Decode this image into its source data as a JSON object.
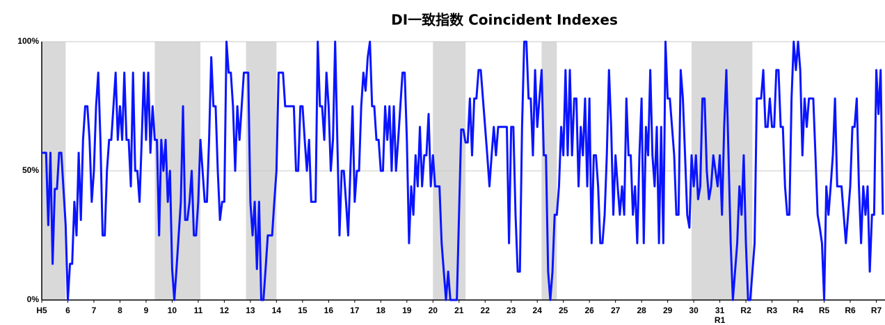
{
  "chart_data": {
    "type": "line",
    "title": "DI一致指数 Coincident Indexes",
    "categories": [
      "H5",
      null,
      null,
      null,
      null,
      null,
      null,
      null,
      null,
      null,
      null,
      null,
      "6",
      null,
      null,
      null,
      null,
      null,
      null,
      null,
      null,
      null,
      null,
      null,
      "7",
      null,
      null,
      null,
      null,
      null,
      null,
      null,
      null,
      null,
      null,
      null,
      "8",
      null,
      null,
      null,
      null,
      null,
      null,
      null,
      null,
      null,
      null,
      null,
      "9",
      null,
      null,
      null,
      null,
      null,
      null,
      null,
      null,
      null,
      null,
      null,
      "10",
      null,
      null,
      null,
      null,
      null,
      null,
      null,
      null,
      null,
      null,
      null,
      "11",
      null,
      null,
      null,
      null,
      null,
      null,
      null,
      null,
      null,
      null,
      null,
      "12",
      null,
      null,
      null,
      null,
      null,
      null,
      null,
      null,
      null,
      null,
      null,
      "13",
      null,
      null,
      null,
      null,
      null,
      null,
      null,
      null,
      null,
      null,
      null,
      "14",
      null,
      null,
      null,
      null,
      null,
      null,
      null,
      null,
      null,
      null,
      null,
      "15",
      null,
      null,
      null,
      null,
      null,
      null,
      null,
      null,
      null,
      null,
      null,
      "16",
      null,
      null,
      null,
      null,
      null,
      null,
      null,
      null,
      null,
      null,
      null,
      "17",
      null,
      null,
      null,
      null,
      null,
      null,
      null,
      null,
      null,
      null,
      null,
      "18",
      null,
      null,
      null,
      null,
      null,
      null,
      null,
      null,
      null,
      null,
      null,
      "19",
      null,
      null,
      null,
      null,
      null,
      null,
      null,
      null,
      null,
      null,
      null,
      "20",
      null,
      null,
      null,
      null,
      null,
      null,
      null,
      null,
      null,
      null,
      null,
      "21",
      null,
      null,
      null,
      null,
      null,
      null,
      null,
      null,
      null,
      null,
      null,
      "22",
      null,
      null,
      null,
      null,
      null,
      null,
      null,
      null,
      null,
      null,
      null,
      "23",
      null,
      null,
      null,
      null,
      null,
      null,
      null,
      null,
      null,
      null,
      null,
      "24",
      null,
      null,
      null,
      null,
      null,
      null,
      null,
      null,
      null,
      null,
      null,
      "25",
      null,
      null,
      null,
      null,
      null,
      null,
      null,
      null,
      null,
      null,
      null,
      "26",
      null,
      null,
      null,
      null,
      null,
      null,
      null,
      null,
      null,
      null,
      null,
      "27",
      null,
      null,
      null,
      null,
      null,
      null,
      null,
      null,
      null,
      null,
      null,
      "28",
      null,
      null,
      null,
      null,
      null,
      null,
      null,
      null,
      null,
      null,
      null,
      "29",
      null,
      null,
      null,
      null,
      null,
      null,
      null,
      null,
      null,
      null,
      null,
      "30",
      null,
      null,
      null,
      null,
      null,
      null,
      null,
      null,
      null,
      null,
      null,
      "31",
      null,
      null,
      null,
      null,
      null,
      null,
      null,
      null,
      null,
      null,
      null,
      "R2",
      null,
      null,
      null,
      null,
      null,
      null,
      null,
      null,
      null,
      null,
      null,
      "R3",
      null,
      null,
      null,
      null,
      null,
      null,
      null,
      null,
      null,
      null,
      null,
      "R4",
      null,
      null,
      null,
      null,
      null,
      null,
      null,
      null,
      null,
      null,
      null,
      "R5",
      null,
      null,
      null,
      null,
      null,
      null,
      null,
      null,
      null,
      null,
      null,
      "R6",
      null,
      null,
      null,
      null,
      null,
      null,
      null,
      null,
      null,
      null,
      null,
      "R7",
      null,
      null,
      null
    ],
    "era_label": {
      "index": 312,
      "label": "R1"
    },
    "values": [
      57,
      57,
      57,
      29,
      57,
      14,
      43,
      43,
      57,
      57,
      43,
      29,
      0,
      14,
      14,
      38,
      25,
      57,
      31,
      62,
      75,
      75,
      62,
      38,
      50,
      75,
      88,
      62,
      25,
      25,
      50,
      62,
      62,
      75,
      88,
      62,
      75,
      62,
      88,
      62,
      62,
      44,
      88,
      50,
      50,
      38,
      62,
      88,
      62,
      88,
      57,
      75,
      62,
      62,
      25,
      62,
      50,
      62,
      38,
      50,
      12,
      0,
      12,
      25,
      38,
      75,
      31,
      31,
      38,
      50,
      25,
      25,
      38,
      62,
      50,
      38,
      38,
      62,
      94,
      75,
      75,
      50,
      31,
      38,
      38,
      100,
      88,
      88,
      75,
      50,
      75,
      62,
      75,
      88,
      88,
      88,
      38,
      25,
      38,
      12,
      38,
      0,
      0,
      12,
      25,
      25,
      25,
      38,
      50,
      88,
      88,
      88,
      75,
      75,
      75,
      75,
      75,
      50,
      50,
      75,
      75,
      62,
      50,
      62,
      38,
      38,
      38,
      100,
      75,
      75,
      62,
      88,
      75,
      50,
      62,
      100,
      62,
      25,
      50,
      50,
      38,
      25,
      50,
      75,
      38,
      50,
      50,
      75,
      88,
      81,
      94,
      100,
      75,
      75,
      62,
      62,
      50,
      50,
      75,
      62,
      75,
      50,
      75,
      50,
      62,
      75,
      88,
      88,
      62,
      22,
      44,
      33,
      56,
      44,
      67,
      44,
      56,
      56,
      72,
      44,
      56,
      44,
      44,
      44,
      22,
      11,
      0,
      11,
      0,
      0,
      0,
      0,
      33,
      66,
      66,
      61,
      61,
      78,
      56,
      78,
      78,
      89,
      89,
      78,
      67,
      56,
      44,
      56,
      67,
      56,
      67,
      67,
      67,
      67,
      67,
      22,
      67,
      67,
      33,
      11,
      11,
      67,
      100,
      100,
      78,
      78,
      56,
      89,
      67,
      78,
      89,
      56,
      56,
      11,
      0,
      11,
      33,
      33,
      44,
      67,
      56,
      89,
      56,
      89,
      56,
      78,
      78,
      44,
      67,
      56,
      78,
      44,
      78,
      22,
      56,
      56,
      44,
      22,
      22,
      33,
      56,
      89,
      67,
      33,
      56,
      44,
      33,
      44,
      33,
      78,
      56,
      56,
      33,
      44,
      22,
      56,
      78,
      22,
      67,
      56,
      89,
      56,
      44,
      67,
      22,
      67,
      22,
      100,
      78,
      78,
      67,
      56,
      33,
      33,
      89,
      78,
      56,
      33,
      28,
      56,
      44,
      56,
      39,
      44,
      78,
      78,
      50,
      39,
      44,
      56,
      50,
      44,
      56,
      33,
      67,
      89,
      56,
      22,
      0,
      11,
      22,
      44,
      33,
      56,
      22,
      0,
      0,
      11,
      22,
      78,
      78,
      78,
      89,
      67,
      67,
      78,
      67,
      67,
      89,
      89,
      67,
      67,
      44,
      33,
      33,
      78,
      100,
      89,
      100,
      89,
      56,
      78,
      67,
      78,
      78,
      78,
      56,
      33,
      28,
      22,
      0,
      44,
      33,
      44,
      56,
      78,
      44,
      44,
      44,
      33,
      22,
      33,
      44,
      67,
      67,
      78,
      44,
      22,
      44,
      33,
      44,
      11,
      33,
      33,
      89,
      72,
      89,
      33
    ],
    "color": "#0a14ff",
    "shaded_ranges": [
      [
        0,
        11
      ],
      [
        52,
        73
      ],
      [
        94,
        108
      ],
      [
        180,
        195
      ],
      [
        230,
        237
      ],
      [
        299,
        327
      ]
    ],
    "shade_color": "#d9d9d9",
    "ylim": [
      0,
      100
    ],
    "yticks": [
      {
        "value": 0,
        "label": "0%"
      },
      {
        "value": 50,
        "label": "50%"
      },
      {
        "value": 100,
        "label": "100%"
      }
    ],
    "grid": true
  }
}
